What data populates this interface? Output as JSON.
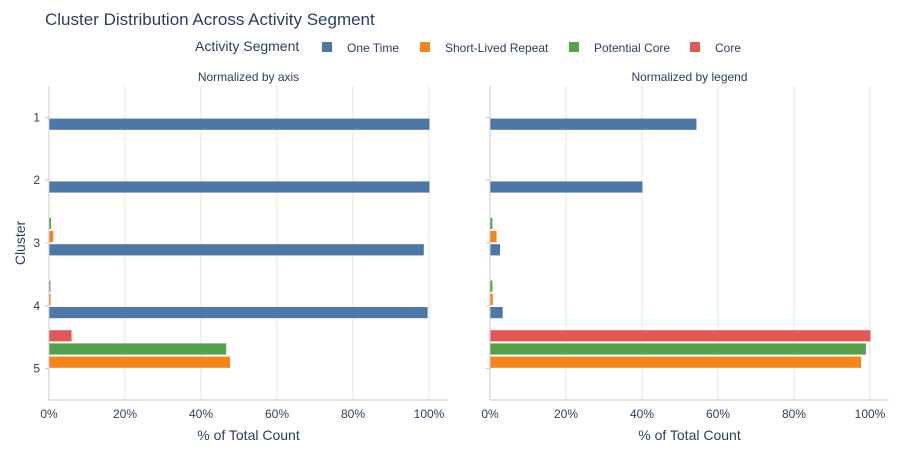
{
  "chart_data": {
    "type": "bar",
    "orientation": "horizontal",
    "title": "Cluster Distribution Across Activity Segment",
    "legend": {
      "title": "Activity Segment",
      "entries": [
        "One Time",
        "Short-Lived Repeat",
        "Potential Core",
        "Core"
      ],
      "placement": "top"
    },
    "ylabel": "Cluster",
    "categories": [
      "1",
      "2",
      "3",
      "4",
      "5"
    ],
    "colors": {
      "One Time": "#4c78a8",
      "Short-Lived Repeat": "#f58518",
      "Potential Core": "#54a24b",
      "Core": "#e45756"
    },
    "panels": [
      {
        "subtitle": "Normalized by axis",
        "xlabel": "% of Total Count",
        "xlim": [
          0,
          105
        ],
        "xticks": [
          "0%",
          "20%",
          "40%",
          "60%",
          "80%",
          "100%"
        ],
        "series": [
          {
            "name": "One Time",
            "values": [
              100,
              100,
              98.5,
              99.5,
              0
            ]
          },
          {
            "name": "Short-Lived Repeat",
            "values": [
              0,
              0,
              1,
              0.3,
              47.5
            ]
          },
          {
            "name": "Potential Core",
            "values": [
              0,
              0,
              0.4,
              0.2,
              46.5
            ]
          },
          {
            "name": "Core",
            "values": [
              0,
              0,
              0,
              0,
              5.8
            ]
          }
        ]
      },
      {
        "subtitle": "Normalized by legend",
        "xlabel": "% of Total Count",
        "xlim": [
          0,
          105
        ],
        "xticks": [
          "0%",
          "20%",
          "40%",
          "60%",
          "80%",
          "100%"
        ],
        "series": [
          {
            "name": "One Time",
            "values": [
              54.2,
              40,
              2.5,
              3.2,
              0
            ]
          },
          {
            "name": "Short-Lived Repeat",
            "values": [
              0,
              0,
              1.6,
              0.6,
              97.5
            ]
          },
          {
            "name": "Potential Core",
            "values": [
              0,
              0,
              0.5,
              0.5,
              98.8
            ]
          },
          {
            "name": "Core",
            "values": [
              0,
              0,
              0,
              0,
              100
            ]
          }
        ]
      }
    ]
  }
}
